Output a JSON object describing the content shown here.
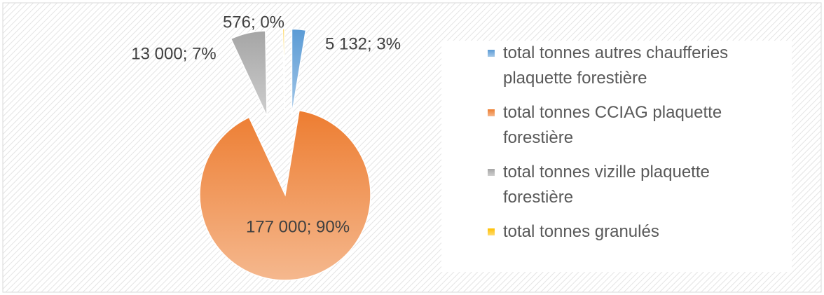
{
  "chart_data": {
    "type": "pie",
    "categories": [
      "total tonnes autres chaufferies plaquette forestière",
      "total tonnes CCIAG plaquette forestière",
      "total tonnes vizille plaquette forestière",
      "total tonnes granulés"
    ],
    "values": [
      5132,
      177000,
      13000,
      576
    ],
    "value_labels": [
      "5 132; 3%",
      "177 000; 90%",
      "13 000; 7%",
      "576; 0%"
    ],
    "colors": [
      "#5b9bd5",
      "#ed7d31",
      "#a5a5a5",
      "#ffc000"
    ],
    "legend": "right"
  }
}
